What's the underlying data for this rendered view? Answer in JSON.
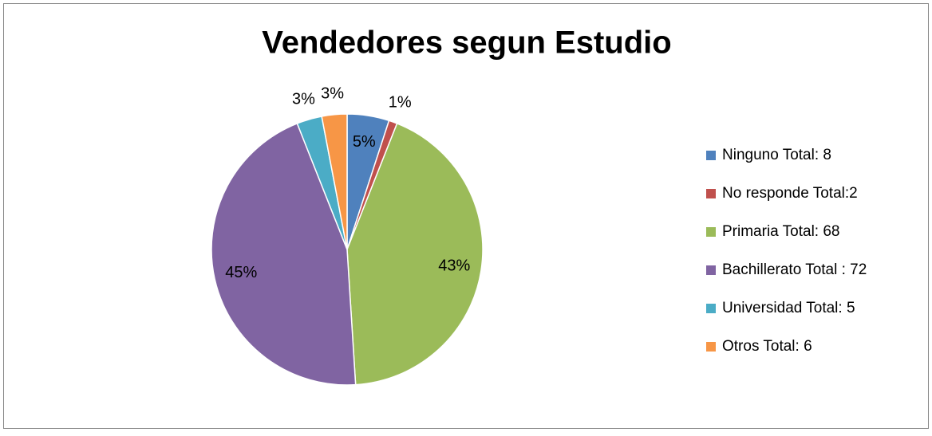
{
  "chart_data": {
    "type": "pie",
    "title": "Vendedores segun Estudio",
    "categories": [
      "Ninguno  Total: 8",
      "No responde Total:2",
      "Primaria Total: 68",
      "Bachillerato Total : 72",
      "Universidad Total: 5",
      "Otros Total: 6"
    ],
    "values": [
      5,
      1,
      43,
      45,
      3,
      3
    ],
    "value_labels": [
      "5%",
      "1%",
      "43%",
      "45%",
      "3%",
      "3%"
    ],
    "colors": [
      "#4f81bd",
      "#c0504d",
      "#9bbb59",
      "#8064a2",
      "#4bacc6",
      "#f79646"
    ],
    "legend": "right"
  }
}
